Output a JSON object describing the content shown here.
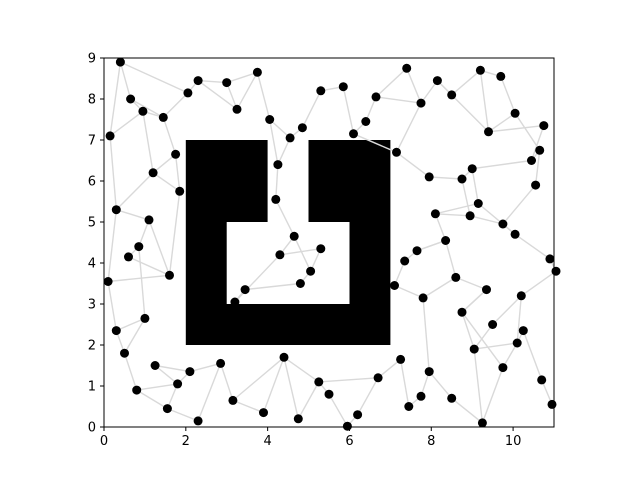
{
  "chart_data": {
    "type": "scatter",
    "title": "",
    "xlabel": "",
    "ylabel": "",
    "xlim": [
      0,
      11
    ],
    "ylim": [
      0,
      9
    ],
    "xticks": [
      0,
      2,
      4,
      6,
      8,
      10
    ],
    "yticks": [
      0,
      1,
      2,
      3,
      4,
      5,
      6,
      7,
      8,
      9
    ],
    "grid": false,
    "colors": {
      "node": "#000000",
      "edge": "#d9d9d9",
      "obstacle": "#000000"
    },
    "obstacles": [
      [
        [
          2,
          2
        ],
        [
          7,
          2
        ],
        [
          7,
          7
        ],
        [
          5,
          7
        ],
        [
          5,
          5
        ],
        [
          6,
          5
        ],
        [
          6,
          3
        ],
        [
          3,
          3
        ],
        [
          3,
          5
        ],
        [
          4,
          5
        ],
        [
          4,
          7
        ],
        [
          2,
          7
        ]
      ]
    ],
    "nodes": [
      [
        0.4,
        8.9
      ],
      [
        0.65,
        8.0
      ],
      [
        0.95,
        7.7
      ],
      [
        0.15,
        7.1
      ],
      [
        1.45,
        7.55
      ],
      [
        1.75,
        6.65
      ],
      [
        1.2,
        6.2
      ],
      [
        1.85,
        5.75
      ],
      [
        0.3,
        5.3
      ],
      [
        1.1,
        5.05
      ],
      [
        0.85,
        4.4
      ],
      [
        0.6,
        4.15
      ],
      [
        1.6,
        3.7
      ],
      [
        0.1,
        3.55
      ],
      [
        1.0,
        2.65
      ],
      [
        0.3,
        2.35
      ],
      [
        0.5,
        1.8
      ],
      [
        1.25,
        1.5
      ],
      [
        2.1,
        1.35
      ],
      [
        1.8,
        1.05
      ],
      [
        0.8,
        0.9
      ],
      [
        1.55,
        0.45
      ],
      [
        2.3,
        0.15
      ],
      [
        2.05,
        8.15
      ],
      [
        2.3,
        8.45
      ],
      [
        3.0,
        8.4
      ],
      [
        3.25,
        7.75
      ],
      [
        3.75,
        8.65
      ],
      [
        4.05,
        7.5
      ],
      [
        4.55,
        7.05
      ],
      [
        4.85,
        7.3
      ],
      [
        4.25,
        6.4
      ],
      [
        4.2,
        5.55
      ],
      [
        4.65,
        4.65
      ],
      [
        4.3,
        4.2
      ],
      [
        5.3,
        4.35
      ],
      [
        5.05,
        3.8
      ],
      [
        4.8,
        3.5
      ],
      [
        3.45,
        3.35
      ],
      [
        3.2,
        3.05
      ],
      [
        2.85,
        1.55
      ],
      [
        3.15,
        0.65
      ],
      [
        3.9,
        0.35
      ],
      [
        4.4,
        1.7
      ],
      [
        4.75,
        0.2
      ],
      [
        5.25,
        1.1
      ],
      [
        5.5,
        0.8
      ],
      [
        5.95,
        0.02
      ],
      [
        6.2,
        0.3
      ],
      [
        6.7,
        1.2
      ],
      [
        7.25,
        1.65
      ],
      [
        7.45,
        0.5
      ],
      [
        7.75,
        0.75
      ],
      [
        7.95,
        1.35
      ],
      [
        8.5,
        0.7
      ],
      [
        9.25,
        0.1
      ],
      [
        9.75,
        1.45
      ],
      [
        10.1,
        2.05
      ],
      [
        10.25,
        2.35
      ],
      [
        10.7,
        1.15
      ],
      [
        10.95,
        0.55
      ],
      [
        5.3,
        8.2
      ],
      [
        5.85,
        8.3
      ],
      [
        6.1,
        7.15
      ],
      [
        6.4,
        7.45
      ],
      [
        6.65,
        8.05
      ],
      [
        7.4,
        8.75
      ],
      [
        7.75,
        7.9
      ],
      [
        8.15,
        8.45
      ],
      [
        8.5,
        8.1
      ],
      [
        9.2,
        8.7
      ],
      [
        9.7,
        8.55
      ],
      [
        10.05,
        7.65
      ],
      [
        9.4,
        7.2
      ],
      [
        10.75,
        7.35
      ],
      [
        10.45,
        6.5
      ],
      [
        10.65,
        6.75
      ],
      [
        10.55,
        5.9
      ],
      [
        7.15,
        6.7
      ],
      [
        7.95,
        6.1
      ],
      [
        8.75,
        6.05
      ],
      [
        9.0,
        6.3
      ],
      [
        9.15,
        5.45
      ],
      [
        8.1,
        5.2
      ],
      [
        8.95,
        5.15
      ],
      [
        9.75,
        4.95
      ],
      [
        10.05,
        4.7
      ],
      [
        10.9,
        4.1
      ],
      [
        11.05,
        3.8
      ],
      [
        7.35,
        4.05
      ],
      [
        7.65,
        4.3
      ],
      [
        8.35,
        4.55
      ],
      [
        8.6,
        3.65
      ],
      [
        9.35,
        3.35
      ],
      [
        10.2,
        3.2
      ],
      [
        7.8,
        3.15
      ],
      [
        7.1,
        3.45
      ],
      [
        8.75,
        2.8
      ],
      [
        9.5,
        2.5
      ],
      [
        9.05,
        1.9
      ]
    ],
    "edges": [
      [
        0,
        1
      ],
      [
        0,
        23
      ],
      [
        0,
        3
      ],
      [
        1,
        2
      ],
      [
        1,
        4
      ],
      [
        2,
        3
      ],
      [
        2,
        4
      ],
      [
        4,
        23
      ],
      [
        4,
        5
      ],
      [
        5,
        6
      ],
      [
        6,
        7
      ],
      [
        6,
        8
      ],
      [
        8,
        9
      ],
      [
        9,
        10
      ],
      [
        10,
        11
      ],
      [
        11,
        12
      ],
      [
        12,
        13
      ],
      [
        13,
        8
      ],
      [
        13,
        15
      ],
      [
        14,
        15
      ],
      [
        14,
        16
      ],
      [
        15,
        16
      ],
      [
        16,
        20
      ],
      [
        17,
        18
      ],
      [
        17,
        19
      ],
      [
        18,
        19
      ],
      [
        19,
        20
      ],
      [
        19,
        21
      ],
      [
        21,
        22
      ],
      [
        22,
        40
      ],
      [
        18,
        40
      ],
      [
        40,
        41
      ],
      [
        41,
        42
      ],
      [
        42,
        43
      ],
      [
        43,
        44
      ],
      [
        44,
        45
      ],
      [
        45,
        46
      ],
      [
        46,
        47
      ],
      [
        47,
        48
      ],
      [
        48,
        49
      ],
      [
        49,
        50
      ],
      [
        50,
        51
      ],
      [
        51,
        52
      ],
      [
        52,
        53
      ],
      [
        53,
        54
      ],
      [
        54,
        55
      ],
      [
        55,
        56
      ],
      [
        56,
        57
      ],
      [
        57,
        58
      ],
      [
        58,
        59
      ],
      [
        59,
        60
      ],
      [
        23,
        24
      ],
      [
        24,
        25
      ],
      [
        25,
        26
      ],
      [
        26,
        27
      ],
      [
        27,
        28
      ],
      [
        28,
        29
      ],
      [
        29,
        30
      ],
      [
        30,
        61
      ],
      [
        61,
        62
      ],
      [
        62,
        63
      ],
      [
        63,
        64
      ],
      [
        64,
        65
      ],
      [
        65,
        66
      ],
      [
        66,
        67
      ],
      [
        67,
        68
      ],
      [
        68,
        69
      ],
      [
        69,
        70
      ],
      [
        70,
        71
      ],
      [
        71,
        72
      ],
      [
        72,
        73
      ],
      [
        73,
        74
      ],
      [
        74,
        75
      ],
      [
        75,
        76
      ],
      [
        76,
        77
      ],
      [
        77,
        85
      ],
      [
        85,
        86
      ],
      [
        86,
        87
      ],
      [
        87,
        88
      ],
      [
        88,
        94
      ],
      [
        94,
        98
      ],
      [
        98,
        99
      ],
      [
        99,
        97
      ],
      [
        97,
        93
      ],
      [
        93,
        92
      ],
      [
        92,
        91
      ],
      [
        91,
        90
      ],
      [
        90,
        89
      ],
      [
        89,
        96
      ],
      [
        96,
        95
      ],
      [
        95,
        53
      ],
      [
        78,
        79
      ],
      [
        79,
        80
      ],
      [
        80,
        81
      ],
      [
        81,
        82
      ],
      [
        82,
        83
      ],
      [
        83,
        84
      ],
      [
        84,
        85
      ],
      [
        31,
        32
      ],
      [
        32,
        33
      ],
      [
        33,
        34
      ],
      [
        34,
        35
      ],
      [
        35,
        36
      ],
      [
        36,
        37
      ],
      [
        37,
        38
      ],
      [
        38,
        39
      ],
      [
        39,
        34
      ],
      [
        33,
        36
      ],
      [
        31,
        29
      ],
      [
        28,
        31
      ],
      [
        39,
        38
      ],
      [
        7,
        12
      ],
      [
        10,
        14
      ],
      [
        20,
        21
      ],
      [
        3,
        8
      ],
      [
        5,
        7
      ],
      [
        24,
        26
      ],
      [
        27,
        25
      ],
      [
        63,
        78
      ],
      [
        65,
        67
      ],
      [
        67,
        78
      ],
      [
        68,
        73
      ],
      [
        70,
        73
      ],
      [
        72,
        76
      ],
      [
        80,
        84
      ],
      [
        82,
        86
      ],
      [
        81,
        75
      ],
      [
        83,
        91
      ],
      [
        90,
        91
      ],
      [
        92,
        95
      ],
      [
        93,
        97
      ],
      [
        94,
        57
      ],
      [
        57,
        99
      ],
      [
        99,
        55
      ],
      [
        97,
        56
      ],
      [
        45,
        49
      ],
      [
        43,
        45
      ],
      [
        41,
        43
      ],
      [
        2,
        6
      ],
      [
        9,
        12
      ]
    ]
  }
}
